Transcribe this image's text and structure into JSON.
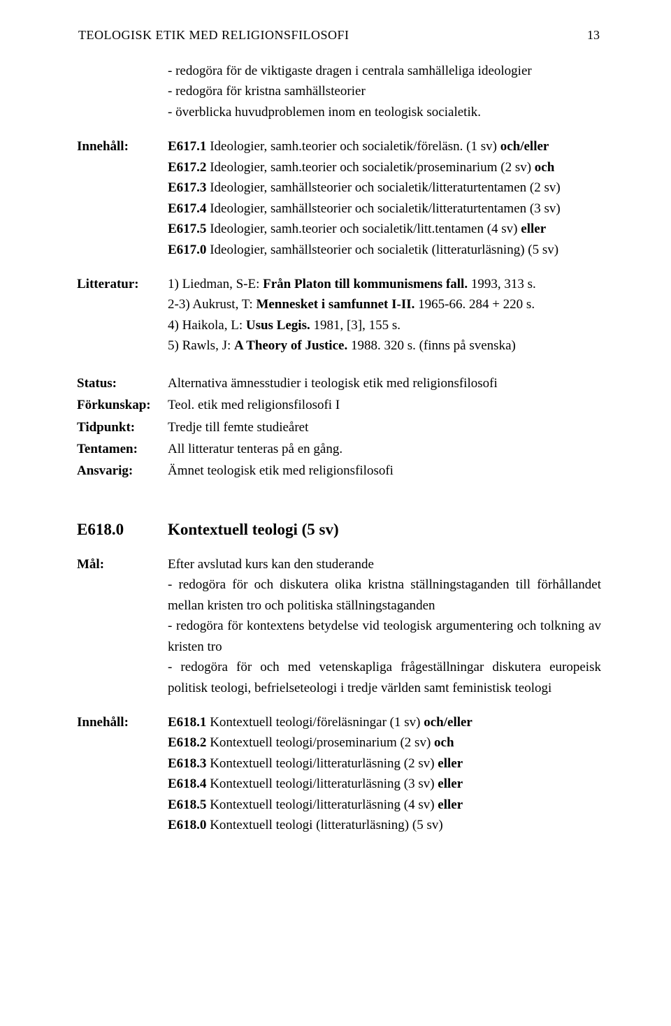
{
  "running_head": {
    "title": "TEOLOGISK ETIK MED RELIGIONSFILOSOFI",
    "page": "13"
  },
  "labels": {
    "innehall": "Innehåll:",
    "litteratur": "Litteratur:",
    "status": "Status:",
    "forkunskap": "Förkunskap:",
    "tidpunkt": "Tidpunkt:",
    "tentamen": "Tentamen:",
    "ansvarig": "Ansvarig:",
    "mal": "Mål:"
  },
  "top_goals": {
    "l1": "- redogöra för de viktigaste dragen i centrala samhälleliga ideologier",
    "l2": "- redogöra för kristna samhällsteorier",
    "l3": "- överblicka huvudproblemen inom en teologisk socialetik."
  },
  "innehall1": {
    "e1a": "E617.1",
    "e1b": " Ideologier, samh.teorier och socialetik/föreläsn. (1 sv) ",
    "e1c": "och/eller",
    "e2a": "E617.2",
    "e2b": " Ideologier, samh.teorier och socialetik/proseminarium (2 sv) ",
    "e2c": "och",
    "e3a": "E617.3",
    "e3b": " Ideologier, samhällsteorier och socialetik/litteraturtentamen (2 sv)",
    "e4a": "E617.4",
    "e4b": " Ideologier, samhällsteorier och socialetik/litteraturtentamen (3 sv)",
    "e5a": "E617.5",
    "e5b": " Ideologier, samh.teorier och socialetik/litt.tentamen (4 sv) ",
    "e5c": "eller",
    "e0a": "E617.0",
    "e0b": " Ideologier, samhällsteorier och socialetik (litteraturläsning) (5 sv)"
  },
  "litteratur": {
    "l1a": "1) Liedman, S-E: ",
    "l1b": "Från Platon till kommunismens fall.",
    "l1c": " 1993, 313 s.",
    "l2a": "2-3) Aukrust, T: ",
    "l2b": "Mennesket i samfunnet I-II.",
    "l2c": " 1965-66. 284 + 220 s.",
    "l3a": "4) Haikola, L: ",
    "l3b": "Usus Legis.",
    "l3c": " 1981, [3], 155 s.",
    "l4a": "5) Rawls, J: ",
    "l4b": "A Theory of Justice.",
    "l4c": " 1988. 320 s. (finns på svenska)"
  },
  "meta": {
    "status": "Alternativa ämnesstudier i teologisk etik med religionsfilosofi",
    "forkunskap": "Teol. etik med religionsfilosofi I",
    "tidpunkt": "Tredje till femte studieåret",
    "tentamen": "All litteratur tenteras på en gång.",
    "ansvarig": "Ämnet teologisk etik med religionsfilosofi"
  },
  "section": {
    "code": "E618.0",
    "title": "Kontextuell teologi  (5 sv)"
  },
  "mal": {
    "intro": "Efter avslutad kurs kan den studerande",
    "g1": "- redogöra för och diskutera olika kristna ställningstaganden till förhållandet  mellan kristen tro och politiska ställningstaganden",
    "g2": "- redogöra för kontextens betydelse vid teologisk argumentering och tolkning av kristen tro",
    "g3": "- redogöra för och med vetenskapliga frågeställningar diskutera europeisk politisk teologi, befrielseteologi i tredje världen samt feministisk teologi"
  },
  "innehall2": {
    "e1a": "E618.1",
    "e1b": " Kontextuell teologi/föreläsningar (1 sv) ",
    "e1c": "och/eller",
    "e2a": "E618.2",
    "e2b": " Kontextuell teologi/proseminarium (2 sv) ",
    "e2c": "och",
    "e3a": "E618.3",
    "e3b": " Kontextuell teologi/litteraturläsning (2 sv) ",
    "e3c": "eller",
    "e4a": "E618.4",
    "e4b": " Kontextuell teologi/litteraturläsning (3 sv) ",
    "e4c": "eller",
    "e5a": "E618.5",
    "e5b": " Kontextuell teologi/litteraturläsning (4 sv) ",
    "e5c": "eller",
    "e0a": "E618.0",
    "e0b": " Kontextuell teologi (litteraturläsning) (5 sv)"
  }
}
